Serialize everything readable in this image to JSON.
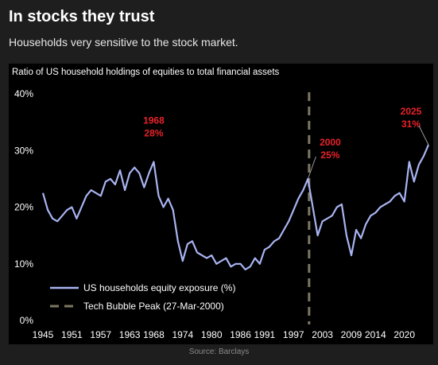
{
  "header": {
    "title": "In stocks they trust",
    "subtitle": "Households very sensitive to the stock market."
  },
  "footer": {
    "source": "Source: Barclays"
  },
  "colors": {
    "background": "#1e1e1e",
    "chart_background": "#000000",
    "series_line": "#a9b4f2",
    "reference_line": "#7d7662",
    "annotation_red": "#e8222a",
    "text_light": "#ffffff"
  },
  "chart_data": {
    "type": "line",
    "title": "Ratio of US household holdings of equities to total financial assets",
    "ylim": [
      0,
      40
    ],
    "y_ticks": [
      "0%",
      "10%",
      "20%",
      "30%",
      "40%"
    ],
    "xlim": [
      1945,
      2025
    ],
    "x_ticks": [
      "1945",
      "1951",
      "1957",
      "1963",
      "1968",
      "1974",
      "1980",
      "1986",
      "1991",
      "1997",
      "2003",
      "2009",
      "2014",
      "2020"
    ],
    "x_tick_values": [
      1945,
      1951,
      1957,
      1963,
      1968,
      1974,
      1980,
      1986,
      1991,
      1997,
      2003,
      2009,
      2014,
      2020
    ],
    "legend_position": "bottom-left",
    "series": [
      {
        "name": "US households equity exposure (%)",
        "x": [
          1945,
          1946,
          1947,
          1948,
          1949,
          1950,
          1951,
          1952,
          1953,
          1954,
          1955,
          1956,
          1957,
          1958,
          1959,
          1960,
          1961,
          1962,
          1963,
          1964,
          1965,
          1966,
          1967,
          1968,
          1969,
          1970,
          1971,
          1972,
          1973,
          1974,
          1975,
          1976,
          1977,
          1978,
          1979,
          1980,
          1981,
          1982,
          1983,
          1984,
          1985,
          1986,
          1987,
          1988,
          1989,
          1990,
          1991,
          1992,
          1993,
          1994,
          1995,
          1996,
          1997,
          1998,
          1999,
          2000,
          2001,
          2002,
          2003,
          2004,
          2005,
          2006,
          2007,
          2008,
          2009,
          2010,
          2011,
          2012,
          2013,
          2014,
          2015,
          2016,
          2017,
          2018,
          2019,
          2020,
          2021,
          2022,
          2023,
          2024,
          2025
        ],
        "values": [
          22.5,
          19.5,
          18,
          17.5,
          18.5,
          19.5,
          20,
          18,
          20,
          22,
          23,
          22.5,
          22,
          24.5,
          25,
          24,
          26.5,
          23,
          26,
          27,
          26,
          23.5,
          26,
          28,
          22,
          20,
          21.5,
          19.5,
          14,
          10.5,
          13.5,
          14,
          12,
          11.5,
          11,
          11.5,
          10,
          10.5,
          11,
          9.5,
          10,
          10,
          9,
          9.5,
          11,
          10,
          12.5,
          13,
          14,
          14.5,
          16,
          17.5,
          19.5,
          21.5,
          23,
          25,
          20,
          15,
          17.5,
          18,
          18.5,
          20,
          20.5,
          15,
          11.5,
          16,
          14.5,
          17,
          18.5,
          19,
          20,
          20.5,
          21,
          22,
          22.5,
          21,
          28,
          24.5,
          27.5,
          29,
          31
        ]
      },
      {
        "name": "Tech Bubble Peak (27-Mar-2000)",
        "reference_x": 2000.23
      }
    ],
    "annotations": [
      {
        "year_label": "1968",
        "value_label": "28%",
        "x": 1968,
        "y": 28
      },
      {
        "year_label": "2000",
        "value_label": "25%",
        "x": 2000,
        "y": 25
      },
      {
        "year_label": "2025",
        "value_label": "31%",
        "x": 2025,
        "y": 31
      }
    ]
  }
}
